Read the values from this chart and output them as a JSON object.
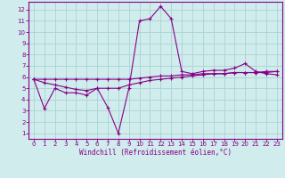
{
  "x": [
    0,
    1,
    2,
    3,
    4,
    5,
    6,
    7,
    8,
    9,
    10,
    11,
    12,
    13,
    14,
    15,
    16,
    17,
    18,
    19,
    20,
    21,
    22,
    23
  ],
  "line1": [
    5.8,
    3.2,
    5.0,
    4.6,
    4.6,
    4.4,
    5.0,
    3.3,
    1.0,
    5.0,
    11.0,
    11.2,
    12.3,
    11.2,
    6.5,
    6.3,
    6.5,
    6.6,
    6.6,
    6.8,
    7.2,
    6.5,
    6.3,
    6.2
  ],
  "line2": [
    5.8,
    5.8,
    5.8,
    5.8,
    5.8,
    5.8,
    5.8,
    5.8,
    5.8,
    5.8,
    5.9,
    6.0,
    6.1,
    6.1,
    6.2,
    6.2,
    6.3,
    6.3,
    6.3,
    6.4,
    6.4,
    6.4,
    6.4,
    6.5
  ],
  "line3": [
    5.8,
    5.5,
    5.3,
    5.1,
    4.9,
    4.8,
    5.0,
    5.0,
    5.0,
    5.3,
    5.5,
    5.7,
    5.8,
    5.9,
    6.0,
    6.1,
    6.2,
    6.3,
    6.3,
    6.4,
    6.4,
    6.4,
    6.5,
    6.5
  ],
  "line_color": "#880088",
  "bg_color": "#d0ecec",
  "grid_color": "#a8d4d4",
  "xlabel": "Windchill (Refroidissement éolien,°C)",
  "ylim": [
    0.5,
    12.7
  ],
  "xlim": [
    -0.5,
    23.5
  ],
  "yticks": [
    1,
    2,
    3,
    4,
    5,
    6,
    7,
    8,
    9,
    10,
    11,
    12
  ],
  "xticks": [
    0,
    1,
    2,
    3,
    4,
    5,
    6,
    7,
    8,
    9,
    10,
    11,
    12,
    13,
    14,
    15,
    16,
    17,
    18,
    19,
    20,
    21,
    22,
    23
  ],
  "tick_fontsize": 5.0,
  "xlabel_fontsize": 5.5
}
